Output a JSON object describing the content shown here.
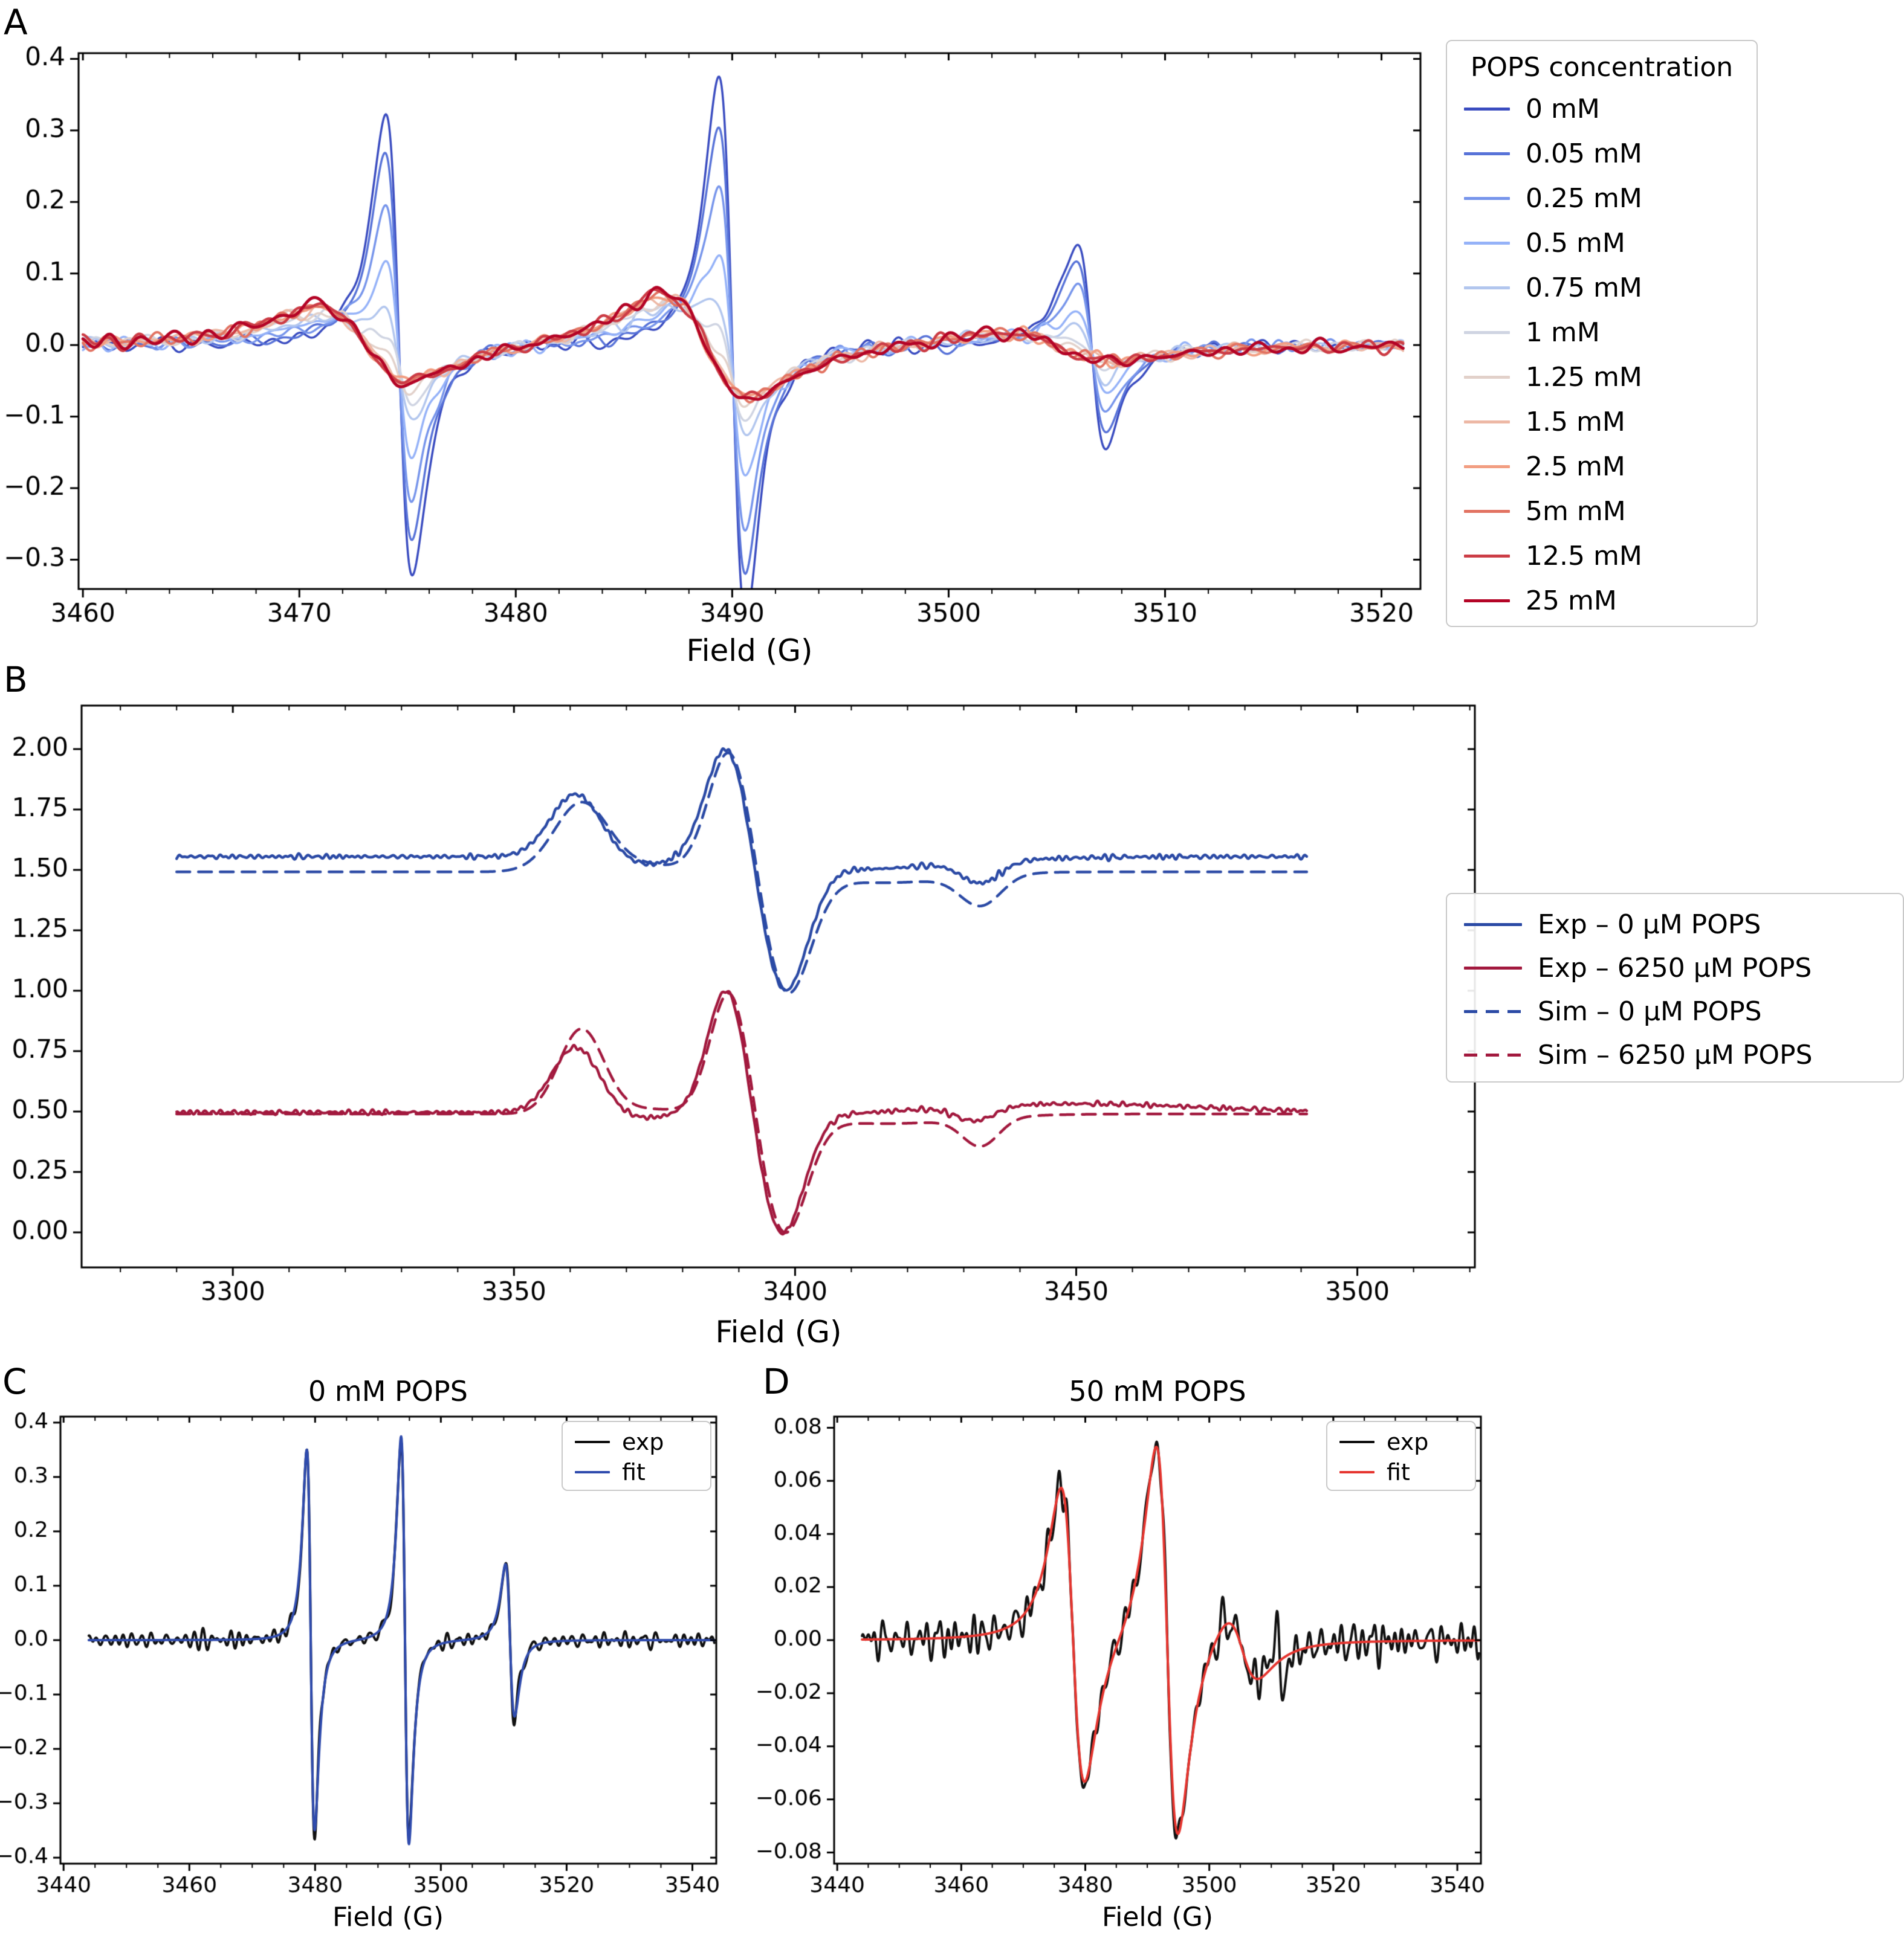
{
  "figure_bg": "#ffffff",
  "panels": {
    "A": {
      "letter": "A",
      "xlabel": "Field (G)",
      "legend_title": "POPS concentration"
    },
    "B": {
      "letter": "B",
      "xlabel": "Field (G)"
    },
    "C": {
      "letter": "C",
      "title": "0 mM POPS",
      "xlabel": "Field (G)"
    },
    "D": {
      "letter": "D",
      "title": "50 mM POPS",
      "xlabel": "Field (G)"
    }
  },
  "chart_data": [
    {
      "id": "A",
      "type": "line",
      "title": "",
      "xlabel": "Field (G)",
      "ylabel": "",
      "legend_title": "POPS concentration",
      "legend_position": "outside-right",
      "xlim": [
        3459.8,
        3521.8
      ],
      "ylim": [
        -0.341,
        0.408
      ],
      "xticks": [
        3460,
        3470,
        3480,
        3490,
        3500,
        3510,
        3520
      ],
      "yticks": [
        0.4,
        0.3,
        0.2,
        0.1,
        0.0,
        -0.1,
        -0.2,
        -0.3
      ],
      "ydec": 1,
      "x_data_range": [
        3460,
        3521
      ],
      "model": {
        "sharp_peaks": [
          [
            3474.6,
            1.05,
            0.325
          ],
          [
            3490.0,
            1.05,
            0.375
          ],
          [
            3506.6,
            1.2,
            0.14
          ]
        ],
        "broad_peaks": [
          [
            3473.0,
            3.6,
            0.052
          ],
          [
            3488.8,
            3.4,
            0.072
          ],
          [
            3505.0,
            4.5,
            0.02
          ]
        ]
      },
      "series": [
        {
          "name": "0 mM",
          "color": "#3a4cc0",
          "sharp": 1.0,
          "broad": 0.0,
          "lw": 3.5,
          "noise": 0.0045,
          "seed": 11
        },
        {
          "name": "0.05 mM",
          "color": "#5873d8",
          "sharp": 0.83,
          "broad": 0.12,
          "lw": 3.5,
          "noise": 0.0045,
          "seed": 12
        },
        {
          "name": "0.25 mM",
          "color": "#7795eb",
          "sharp": 0.62,
          "broad": 0.28,
          "lw": 3.5,
          "noise": 0.0045,
          "seed": 13
        },
        {
          "name": "0.5 mM",
          "color": "#95b2f8",
          "sharp": 0.4,
          "broad": 0.47,
          "lw": 3.5,
          "noise": 0.0045,
          "seed": 14
        },
        {
          "name": "0.75 mM",
          "color": "#b2c6ee",
          "sharp": 0.225,
          "broad": 0.63,
          "lw": 3.5,
          "noise": 0.0045,
          "seed": 15
        },
        {
          "name": "1 mM",
          "color": "#cfd4e2",
          "sharp": 0.125,
          "broad": 0.76,
          "lw": 3.5,
          "noise": 0.0045,
          "seed": 16
        },
        {
          "name": "1.25 mM",
          "color": "#e2d1ca",
          "sharp": 0.055,
          "broad": 0.86,
          "lw": 3.5,
          "noise": 0.0045,
          "seed": 17
        },
        {
          "name": "1.5 mM",
          "color": "#edb8a5",
          "sharp": 0.02,
          "broad": 0.93,
          "lw": 3.5,
          "noise": 0.0045,
          "seed": 18
        },
        {
          "name": "2.5 mM",
          "color": "#f29e82",
          "sharp": 0.0,
          "broad": 0.97,
          "lw": 4,
          "noise": 0.0045,
          "seed": 19
        },
        {
          "name": "5m mM",
          "color": "#e27362",
          "sharp": 0.0,
          "broad": 1.0,
          "lw": 4,
          "noise": 0.0045,
          "seed": 20
        },
        {
          "name": "12.5 mM",
          "color": "#cc3d46",
          "sharp": 0.0,
          "broad": 1.02,
          "lw": 4.5,
          "noise": 0.0045,
          "seed": 21
        },
        {
          "name": "25 mM",
          "color": "#b40426",
          "sharp": 0.0,
          "broad": 1.05,
          "lw": 5,
          "noise": 0.0045,
          "seed": 22
        }
      ]
    },
    {
      "id": "B",
      "type": "line",
      "title": "",
      "xlabel": "Field (G)",
      "ylabel": "",
      "legend_position": "outside-right",
      "xlim": [
        3273.1,
        3520.9
      ],
      "ylim": [
        -0.145,
        2.18
      ],
      "xticks": [
        3300,
        3350,
        3400,
        3450,
        3500
      ],
      "yticks": [
        2.0,
        1.75,
        1.5,
        1.25,
        1.0,
        0.75,
        0.5,
        0.25,
        0.0
      ],
      "ydec": 2,
      "x_data_range": [
        3290,
        3491
      ],
      "series": [
        {
          "name": "Exp – 0 µM POPS",
          "color": "#2b4aa5",
          "dash": false,
          "lw": 4.5,
          "baseline": 1.555,
          "noise": 0.0045,
          "nf0": 2,
          "nf1": 6,
          "seed": 31,
          "gauss": [
            [
              3361,
              4.5,
              0.26
            ],
            [
              3373,
              5,
              -0.035
            ],
            [
              3388,
              3.8,
              0.475
            ],
            [
              3398,
              4.2,
              -0.55
            ],
            [
              3412,
              9,
              -0.035
            ],
            [
              3424,
              16,
              -0.02
            ],
            [
              3433,
              3.5,
              -0.09
            ]
          ]
        },
        {
          "name": "Exp – 6250 µM POPS",
          "color": "#a2193e",
          "dash": false,
          "lw": 4.5,
          "baseline": 0.497,
          "noise": 0.0045,
          "nf0": 2,
          "nf1": 6,
          "seed": 32,
          "gauss": [
            [
              3361,
              4.2,
              0.27
            ],
            [
              3372.5,
              5,
              -0.025
            ],
            [
              3388,
              3.5,
              0.53
            ],
            [
              3397.5,
              4.0,
              -0.51
            ],
            [
              3410,
              8,
              -0.01
            ],
            [
              3432,
              3.5,
              -0.06
            ],
            [
              3450,
              22,
              0.035
            ]
          ]
        },
        {
          "name": "Sim – 0 µM POPS",
          "color": "#2b4aa5",
          "dash": true,
          "lw": 4.5,
          "baseline": 1.492,
          "gauss": [
            [
              3362,
              4.8,
              0.285
            ],
            [
              3374,
              6,
              0.025
            ],
            [
              3388.5,
              3.8,
              0.52
            ],
            [
              3398.5,
              4.2,
              -0.5
            ],
            [
              3416,
              12,
              -0.045
            ],
            [
              3433,
              3.6,
              -0.125
            ]
          ]
        },
        {
          "name": "Sim – 6250 µM POPS",
          "color": "#a2193e",
          "dash": true,
          "lw": 4.5,
          "baseline": 0.49,
          "gauss": [
            [
              3362,
              4.0,
              0.35
            ],
            [
              3374,
              6,
              0.02
            ],
            [
              3388.5,
              3.5,
              0.53
            ],
            [
              3398,
              4.0,
              -0.485
            ],
            [
              3416,
              14,
              -0.04
            ],
            [
              3433,
              3.2,
              -0.115
            ]
          ]
        }
      ]
    },
    {
      "id": "C",
      "type": "line",
      "title": "0 mM POPS",
      "xlabel": "Field (G)",
      "ylabel": "",
      "legend_position": "upper-right-inside",
      "xlim": [
        3439.5,
        3543.8
      ],
      "ylim": [
        -0.411,
        0.411
      ],
      "xticks": [
        3440,
        3460,
        3480,
        3500,
        3520,
        3540
      ],
      "yticks": [
        0.4,
        0.3,
        0.2,
        0.1,
        0.0,
        -0.1,
        -0.2,
        -0.3,
        -0.4
      ],
      "ydec": 1,
      "x_data_range": [
        3444,
        3543.5
      ],
      "series": [
        {
          "name": "exp",
          "color": "#111111",
          "lw": 4,
          "noise": 0.007,
          "nf0": 2,
          "nf1": 6,
          "seed": 41,
          "lorentz": [
            [
              3479.3,
              1.05,
              0.35
            ],
            [
              3494.3,
              1.05,
              0.375
            ],
            [
              3511.0,
              1.2,
              0.14
            ]
          ]
        },
        {
          "name": "fit",
          "color": "#2f4bad",
          "lw": 4,
          "lorentz": [
            [
              3479.3,
              1.08,
              0.35
            ],
            [
              3494.3,
              1.08,
              0.375
            ],
            [
              3511.0,
              1.25,
              0.14
            ]
          ]
        }
      ]
    },
    {
      "id": "D",
      "type": "line",
      "title": "50 mM POPS",
      "xlabel": "Field (G)",
      "ylabel": "",
      "legend_position": "upper-right-inside",
      "xlim": [
        3439.5,
        3543.8
      ],
      "ylim": [
        -0.0842,
        0.0842
      ],
      "xticks": [
        3440,
        3460,
        3480,
        3500,
        3520,
        3540
      ],
      "yticks": [
        0.08,
        0.06,
        0.04,
        0.02,
        0.0,
        -0.02,
        -0.04,
        -0.06,
        -0.08
      ],
      "ydec": 2,
      "x_data_range": [
        3444,
        3543.5
      ],
      "series": [
        {
          "name": "exp",
          "color": "#111111",
          "lw": 4,
          "noise": 0.0035,
          "nf0": 2,
          "nf1": 7,
          "seed": 51,
          "lorentz": [
            [
              3478.0,
              3.2,
              0.057
            ],
            [
              3493.2,
              3.0,
              0.075
            ],
            [
              3505.3,
              4.2,
              0.013
            ],
            [
              3511.3,
              0.9,
              0.012
            ]
          ]
        },
        {
          "name": "fit",
          "color": "#e6352f",
          "lw": 4,
          "lorentz": [
            [
              3478.0,
              3.3,
              0.056
            ],
            [
              3493.2,
              3.05,
              0.074
            ],
            [
              3505.3,
              4.5,
              0.0125
            ]
          ]
        }
      ]
    }
  ]
}
